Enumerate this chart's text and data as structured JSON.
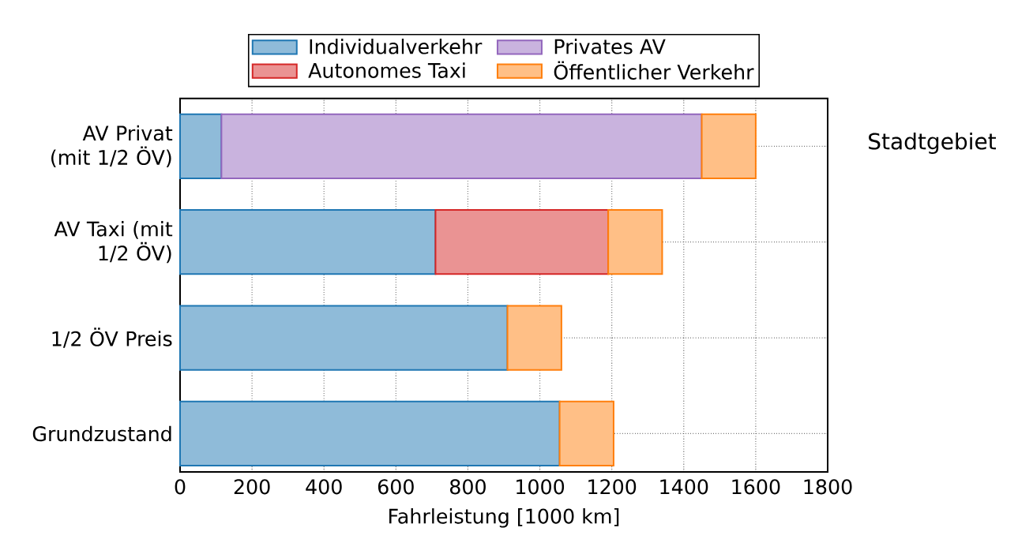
{
  "chart_data": {
    "type": "bar",
    "orientation": "horizontal",
    "stacked": true,
    "categories": [
      "AV Privat (mit 1/2 ÖV)",
      "AV Taxi (mit 1/2 ÖV)",
      "1/2 ÖV Preis",
      "Grundzustand"
    ],
    "series": [
      {
        "name": "Individualverkehr",
        "color": "#8fbbd9",
        "values": [
          115,
          710,
          910,
          1055
        ]
      },
      {
        "name": "Privates AV",
        "color": "#c9b3de",
        "values": [
          1335,
          null,
          null,
          null
        ]
      },
      {
        "name": "Autonomes Taxi",
        "color": "#ea9393",
        "values": [
          null,
          480,
          null,
          null
        ]
      },
      {
        "name": "Öffentlicher Verkehr",
        "color": "#ffbf86",
        "values": [
          150,
          150,
          150,
          150
        ]
      }
    ],
    "xlabel": "Fahrleistung [1000 km]",
    "xlim": [
      0,
      1800
    ],
    "xticks": [
      0,
      200,
      400,
      600,
      800,
      1000,
      1200,
      1400,
      1600,
      1800
    ],
    "grid": true,
    "legend": "top",
    "annotations": [
      "Stadtgebiet"
    ]
  }
}
